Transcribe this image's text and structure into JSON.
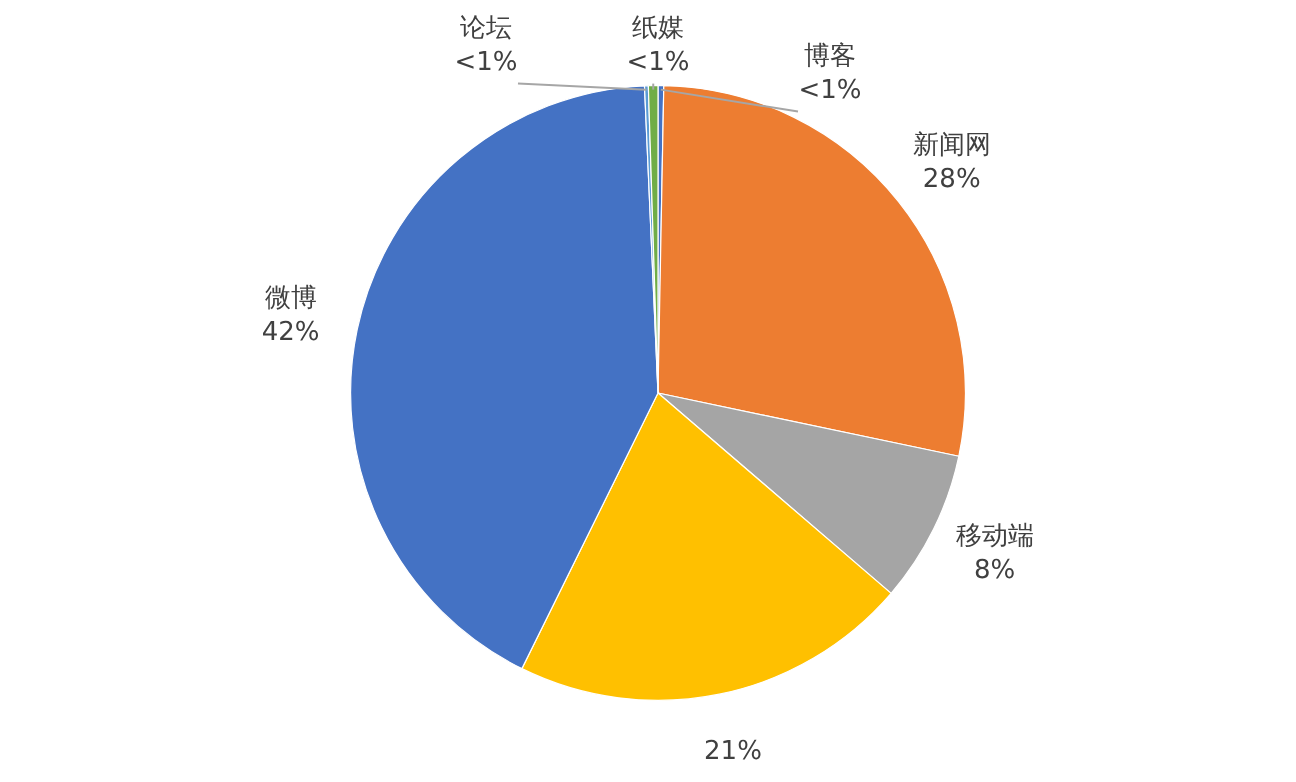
{
  "chart_data": {
    "type": "pie",
    "categories": [
      "博客",
      "新闻网",
      "移动端",
      null,
      "微博",
      "论坛",
      "纸媒"
    ],
    "values": [
      0.3,
      28,
      8,
      21,
      42,
      0.2,
      0.5
    ],
    "value_labels": [
      "<1%",
      "28%",
      "8%",
      "21%",
      "42%",
      "<1%",
      "<1%"
    ],
    "colors": [
      "#4472c4",
      "#ed7d31",
      "#a5a5a5",
      "#ffc000",
      "#4472c4",
      "#5b9bd5",
      "#70ad47"
    ],
    "legend": false
  }
}
